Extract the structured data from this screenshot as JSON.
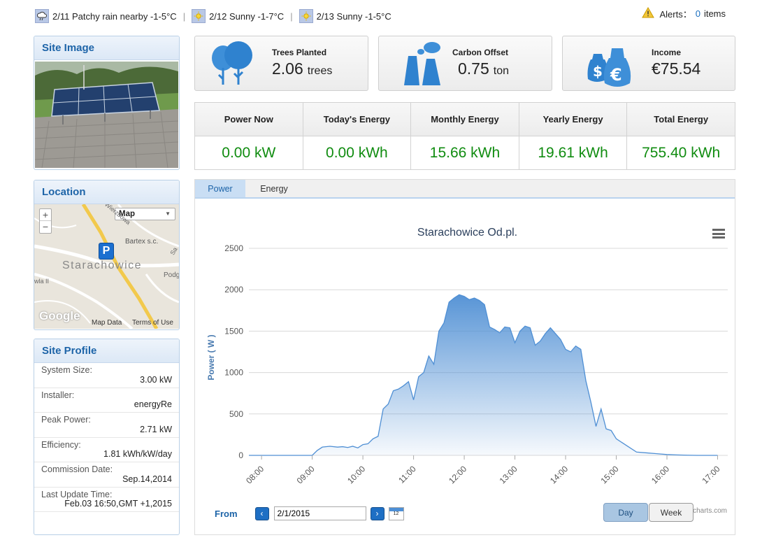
{
  "weather": [
    {
      "date": "2/11",
      "text": "Patchy rain nearby -1-5°C",
      "icon": "cloud-rain-icon"
    },
    {
      "date": "2/12",
      "text": "Sunny -1-7°C",
      "icon": "sun-icon"
    },
    {
      "date": "2/13",
      "text": "Sunny -1-5°C",
      "icon": "sun-icon"
    }
  ],
  "alerts": {
    "label": "Alerts：",
    "count": "0",
    "suffix": "items"
  },
  "site_image": {
    "title": "Site Image"
  },
  "location": {
    "title": "Location",
    "map_type": "Map",
    "zoom_in": "+",
    "zoom_out": "−",
    "city": "Starachowice",
    "poi": "Bartex s.c.",
    "street1": "Wierzbowa",
    "street2": "Podg",
    "street3": "wla II",
    "street4": "Sa",
    "marker": "P",
    "brand": "Google",
    "map_data": "Map Data",
    "terms": "Terms of Use"
  },
  "profile": {
    "title": "Site Profile",
    "rows": [
      {
        "label": "System Size:",
        "value": "3.00 kW"
      },
      {
        "label": "Installer:",
        "value": "energyRe"
      },
      {
        "label": "Peak Power:",
        "value": "2.71 kW"
      },
      {
        "label": "Efficiency:",
        "value": "1.81 kWh/kW/day"
      },
      {
        "label": "Commission Date:",
        "value": "Sep.14,2014"
      },
      {
        "label": "Last Update Time:",
        "value": "Feb.03 16:50,GMT +1,2015"
      }
    ]
  },
  "cards": {
    "trees": {
      "title": "Trees Planted",
      "value": "2.06",
      "unit": "trees"
    },
    "carbon": {
      "title": "Carbon Offset",
      "value": "0.75",
      "unit": "ton"
    },
    "income": {
      "title": "Income",
      "value": "€75.54"
    }
  },
  "energy": [
    {
      "label": "Power Now",
      "value": "0.00 kW"
    },
    {
      "label": "Today's Energy",
      "value": "0.00 kWh"
    },
    {
      "label": "Monthly Energy",
      "value": "15.66 kWh"
    },
    {
      "label": "Yearly Energy",
      "value": "19.61 kWh"
    },
    {
      "label": "Total Energy",
      "value": "755.40 kWh"
    }
  ],
  "tabs": {
    "power": "Power",
    "energy": "Energy"
  },
  "controls": {
    "from_label": "From",
    "date": "2/1/2015",
    "prev": "‹",
    "next": "›",
    "cal_day": "12",
    "day": "Day",
    "week": "Week",
    "credit": "charts.com"
  },
  "colors": {
    "accent": "#1d64a8",
    "value_green": "#108c10",
    "series": "#4f8fd4"
  },
  "chart_data": {
    "type": "area",
    "title": "Starachowice Od.pl.",
    "xlabel": "",
    "ylabel": "Power ( W )",
    "ylim": [
      0,
      2500
    ],
    "yticks": [
      "0",
      "500",
      "1000",
      "1500",
      "2000",
      "2500"
    ],
    "xticks": [
      "08:00",
      "09:00",
      "10:00",
      "11:00",
      "12:00",
      "13:00",
      "14:00",
      "15:00",
      "16:00",
      "17:00"
    ],
    "grid": true,
    "series": [
      {
        "x": [
          7.75,
          8.0,
          8.5,
          9.0,
          9.1,
          9.2,
          9.35,
          9.5,
          9.6,
          9.7,
          9.8,
          9.9,
          10.0,
          10.1,
          10.2,
          10.3,
          10.4,
          10.5,
          10.6,
          10.7,
          10.8,
          10.9,
          11.0,
          11.1,
          11.2,
          11.3,
          11.4,
          11.5,
          11.6,
          11.7,
          11.8,
          11.9,
          12.0,
          12.1,
          12.2,
          12.3,
          12.4,
          12.5,
          12.6,
          12.7,
          12.8,
          12.9,
          13.0,
          13.1,
          13.2,
          13.3,
          13.4,
          13.5,
          13.6,
          13.7,
          13.8,
          13.9,
          14.0,
          14.1,
          14.2,
          14.3,
          14.4,
          14.5,
          14.6,
          14.7,
          14.8,
          14.9,
          15.0,
          15.2,
          15.4,
          15.6,
          15.8,
          16.0,
          16.2,
          16.4,
          16.6,
          16.8,
          17.0
        ],
        "y": [
          0,
          0,
          0,
          0,
          60,
          100,
          110,
          100,
          105,
          95,
          110,
          90,
          130,
          140,
          200,
          230,
          560,
          620,
          780,
          800,
          840,
          890,
          670,
          950,
          1000,
          1200,
          1100,
          1500,
          1600,
          1850,
          1900,
          1940,
          1920,
          1880,
          1900,
          1870,
          1820,
          1550,
          1520,
          1480,
          1550,
          1540,
          1360,
          1500,
          1560,
          1540,
          1330,
          1380,
          1470,
          1540,
          1470,
          1400,
          1280,
          1250,
          1320,
          1280,
          900,
          640,
          350,
          560,
          320,
          300,
          200,
          120,
          40,
          30,
          20,
          10,
          5,
          2,
          0,
          0,
          0
        ]
      }
    ]
  }
}
